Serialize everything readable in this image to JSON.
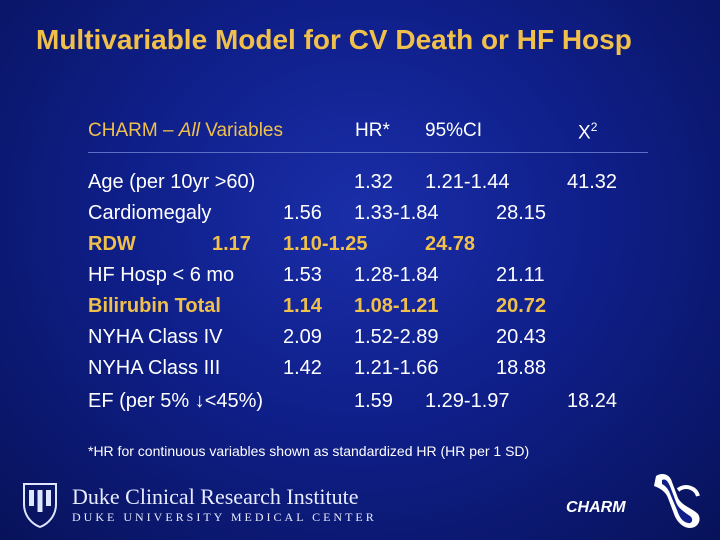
{
  "slide": {
    "title": "Multivariable Model for CV Death or HF Hosp"
  },
  "table_header": {
    "study_prefix": "CHARM – ",
    "study_all": "All",
    "study_suffix": " Variables",
    "hr": "HR*",
    "ci": "95%CI",
    "chi2_symbol": "X",
    "chi2_sup": "2"
  },
  "rows": [
    {
      "variable": "Age (per 10yr >60)",
      "hr": "1.32",
      "ci": "1.21-1.44",
      "chi2": "41.32",
      "highlight": false
    },
    {
      "variable": "Cardiomegaly",
      "hr": "1.56",
      "ci": "1.33-1.84",
      "chi2": "28.15",
      "highlight": false
    },
    {
      "variable": "RDW",
      "hr": "1.17",
      "ci": "1.10-1.25",
      "chi2": "24.78",
      "highlight": true
    },
    {
      "variable": "HF Hosp < 6 mo",
      "hr": "1.53",
      "ci": "1.28-1.84",
      "chi2": "21.11",
      "highlight": false
    },
    {
      "variable": "Bilirubin Total",
      "hr": "1.14",
      "ci": "1.08-1.21",
      "chi2": "20.72",
      "highlight": true
    },
    {
      "variable": "NYHA   Class IV",
      "hr": "2.09",
      "ci": "1.52-2.89",
      "chi2": "20.43",
      "highlight": false
    },
    {
      "variable": "NYHA   Class III",
      "hr": "1.42",
      "ci": "1.21-1.66",
      "chi2": "18.88",
      "highlight": false
    },
    {
      "variable": "EF (per 5% ↓<45%)",
      "hr": "1.59",
      "ci": "1.29-1.97",
      "chi2": "18.24",
      "highlight": false
    }
  ],
  "footnote": "*HR for continuous variables shown as standardized HR (HR per 1 SD)",
  "footer": {
    "institute_name": "Duke Clinical Research Institute",
    "institute_sub": "DUKE UNIVERSITY MEDICAL CENTER",
    "charm_logo_text": "CHARM",
    "colors": {
      "title_yellow": "#f0c04a",
      "background_blue": "#0f1f8a"
    }
  }
}
